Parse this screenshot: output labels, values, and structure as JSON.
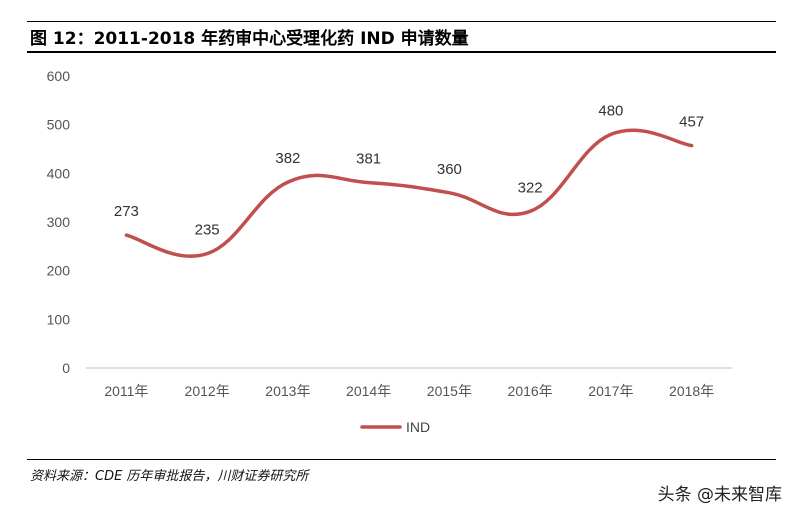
{
  "header": {
    "title": "图 12：2011-2018 年药审中心受理化药 IND 申请数量"
  },
  "chart_data": {
    "type": "line",
    "categories": [
      "2011年",
      "2012年",
      "2013年",
      "2014年",
      "2015年",
      "2016年",
      "2017年",
      "2018年"
    ],
    "series": [
      {
        "name": "IND",
        "values": [
          273,
          235,
          382,
          381,
          360,
          322,
          480,
          457
        ],
        "color": "#c0504d"
      }
    ],
    "yticks": [
      0,
      100,
      200,
      300,
      400,
      500,
      600
    ],
    "ylim": [
      0,
      600
    ],
    "legend_position": "bottom",
    "grid": false
  },
  "footer": {
    "source": "资料来源：CDE 历年审批报告，川财证券研究所",
    "watermark": "头条 @未来智库"
  }
}
